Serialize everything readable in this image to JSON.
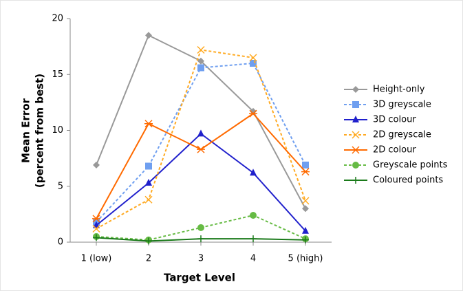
{
  "chart_data": {
    "type": "line",
    "xlabel": "Target Level",
    "ylabel": [
      "Mean Error",
      "(percent from best)"
    ],
    "categories": [
      "1 (low)",
      "2",
      "3",
      "4",
      "5 (high)"
    ],
    "ylim": [
      0,
      20
    ],
    "yticks": [
      0,
      5,
      10,
      15,
      20
    ],
    "series": [
      {
        "name": "Height-only",
        "color": "#999999",
        "dashed": false,
        "marker": "diamond",
        "values": [
          6.9,
          18.5,
          16.2,
          11.7,
          3.0
        ]
      },
      {
        "name": "3D greyscale",
        "color": "#6f9ff0",
        "dashed": true,
        "marker": "square",
        "values": [
          1.8,
          6.8,
          15.6,
          16.0,
          6.9
        ]
      },
      {
        "name": "3D colour",
        "color": "#2020cc",
        "dashed": false,
        "marker": "triangle",
        "values": [
          1.5,
          5.3,
          9.7,
          6.2,
          1.0
        ]
      },
      {
        "name": "2D greyscale",
        "color": "#ffaa22",
        "dashed": true,
        "marker": "x",
        "values": [
          1.2,
          3.8,
          17.2,
          16.5,
          3.7
        ]
      },
      {
        "name": "2D colour",
        "color": "#ff6a00",
        "dashed": false,
        "marker": "star",
        "values": [
          2.1,
          10.6,
          8.3,
          11.5,
          6.3
        ]
      },
      {
        "name": "Greyscale points",
        "color": "#66bb44",
        "dashed": true,
        "marker": "circle",
        "values": [
          0.5,
          0.2,
          1.3,
          2.4,
          0.3
        ]
      },
      {
        "name": "Coloured points",
        "color": "#1a7a1a",
        "dashed": false,
        "marker": "plus",
        "values": [
          0.4,
          0.1,
          0.3,
          0.3,
          0.2
        ]
      }
    ]
  }
}
